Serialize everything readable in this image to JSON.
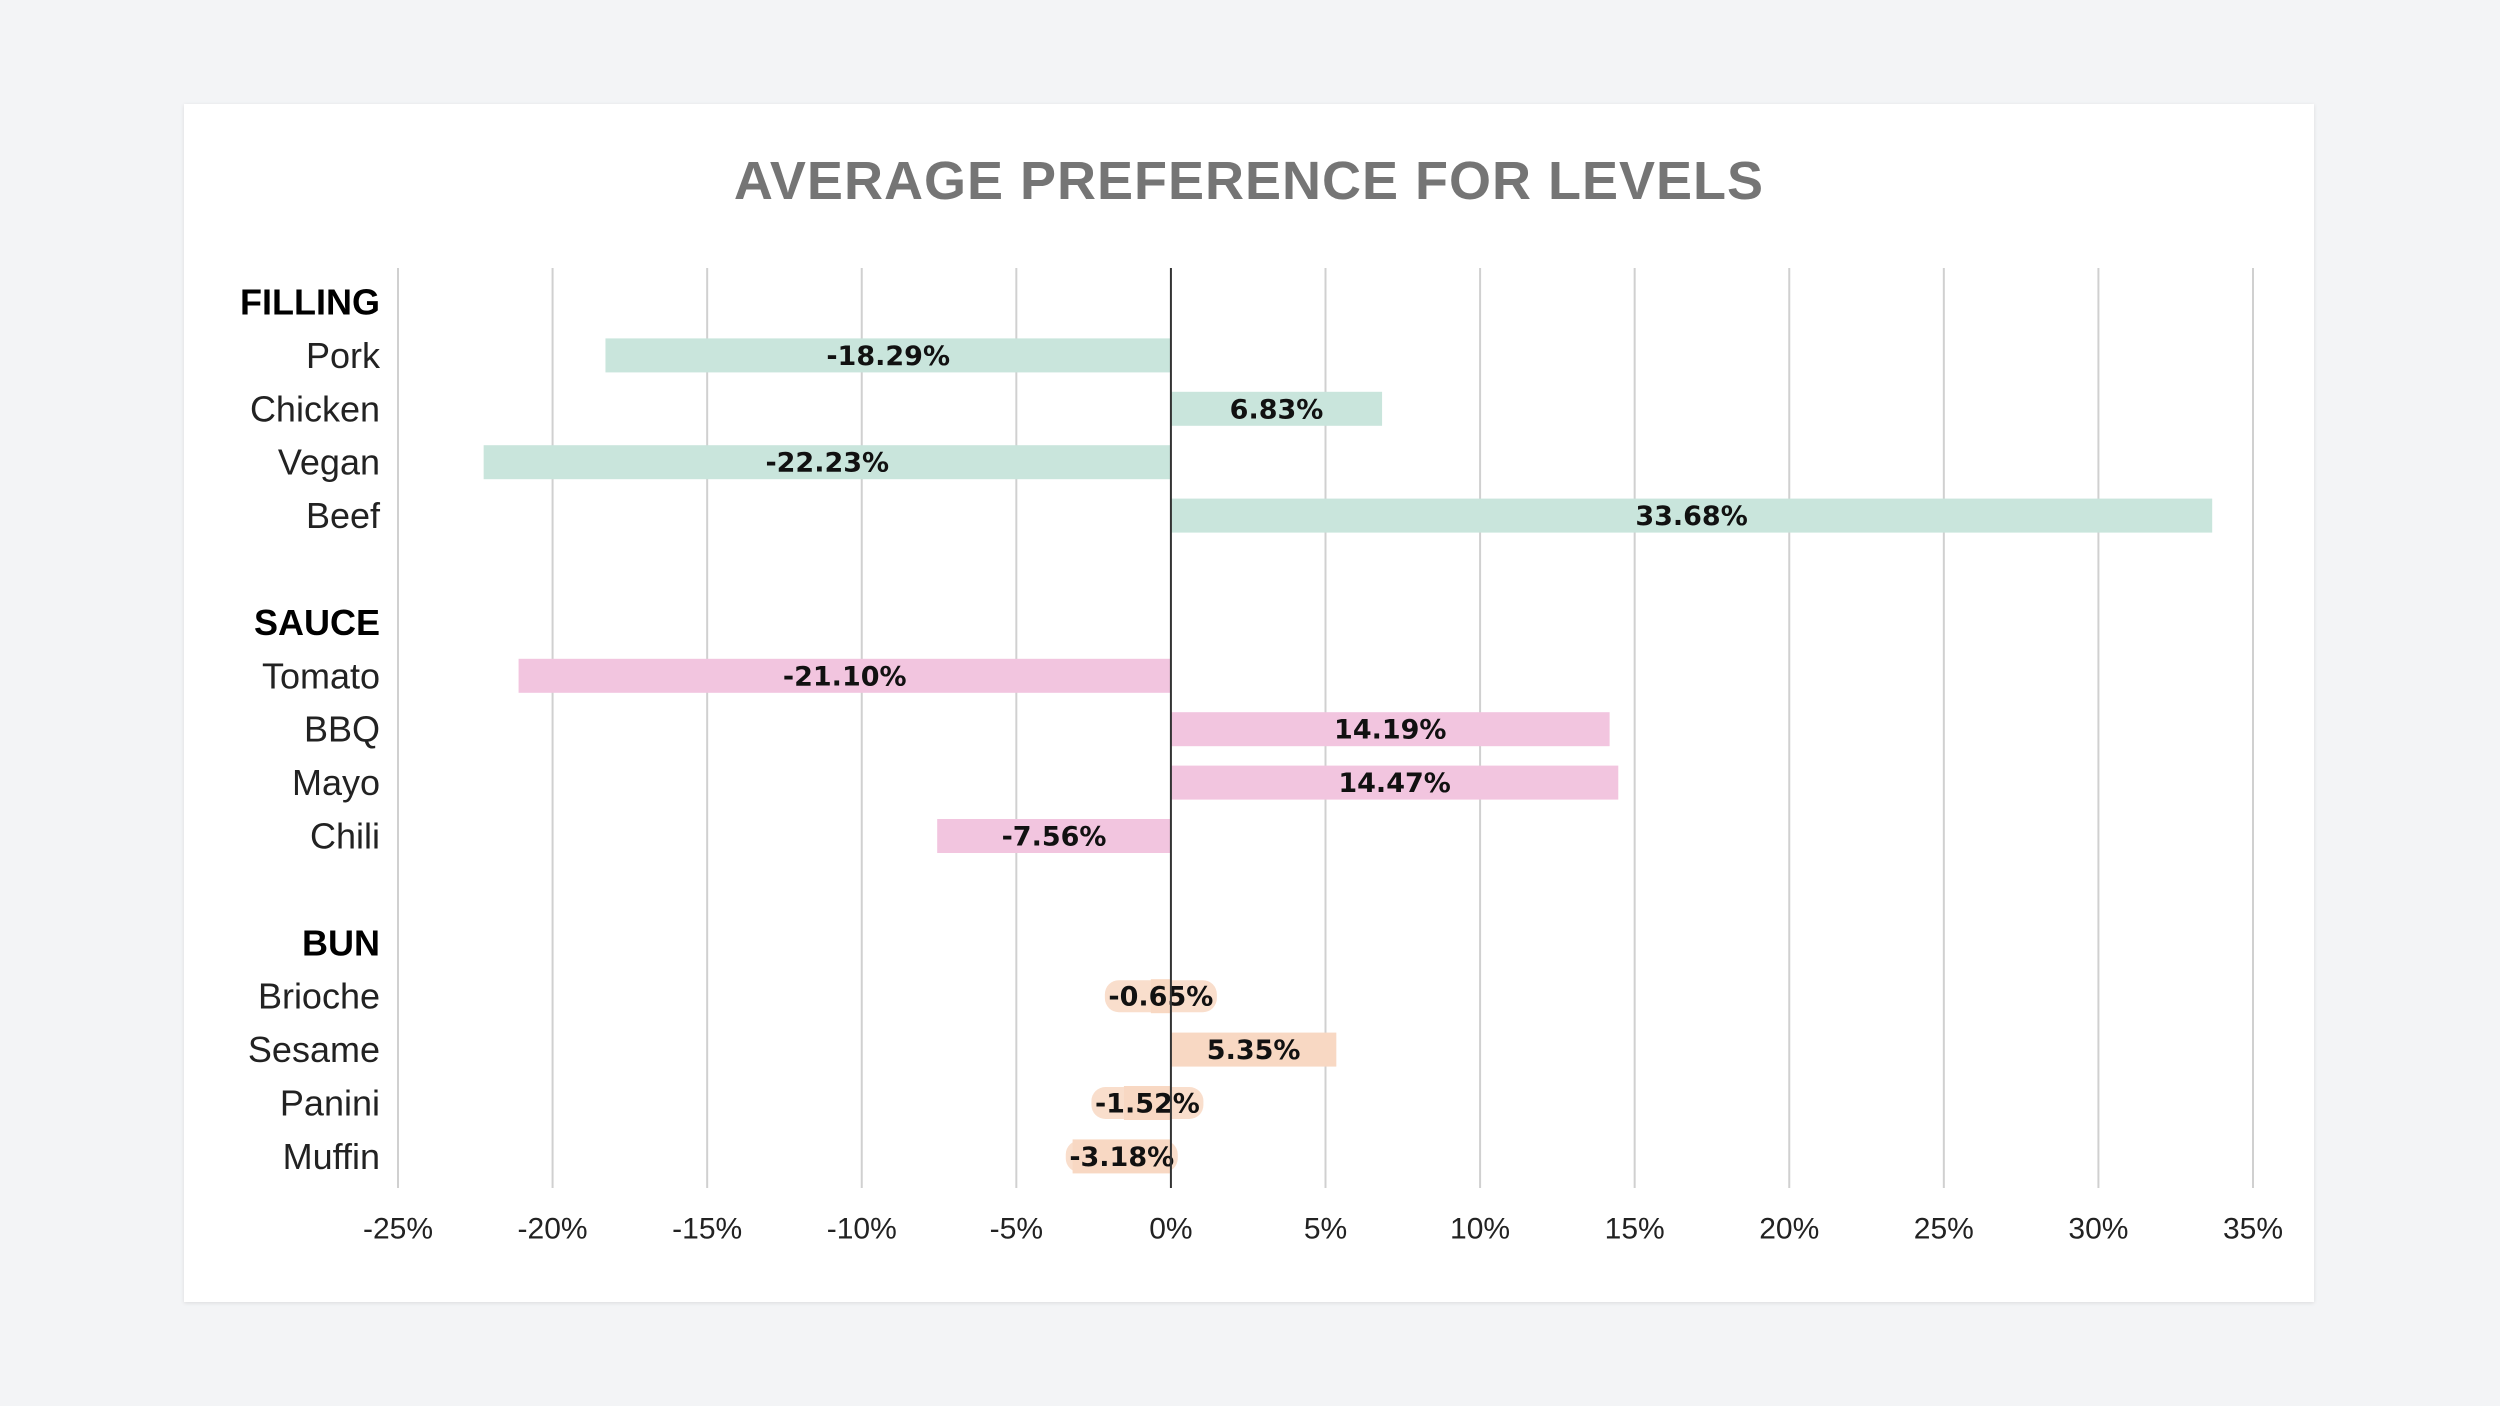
{
  "chart_data": {
    "type": "bar",
    "orientation": "horizontal",
    "title": "AVERAGE PREFERENCE FOR LEVELS",
    "xlabel": "",
    "ylabel": "",
    "xlim": [
      -25,
      35
    ],
    "x_ticks": [
      -25,
      -20,
      -15,
      -10,
      -5,
      0,
      5,
      10,
      15,
      20,
      25,
      30,
      35
    ],
    "x_tick_labels": [
      "-25%",
      "-20%",
      "-15%",
      "-10%",
      "-5%",
      "0%",
      "5%",
      "10%",
      "15%",
      "20%",
      "25%",
      "30%",
      "35%"
    ],
    "grid": "vertical",
    "legend": "none",
    "groups": [
      {
        "name": "FILLING",
        "color": "#c9e5dc",
        "items": [
          {
            "label": "Pork",
            "value": -18.29,
            "value_label": "-18.29%"
          },
          {
            "label": "Chicken",
            "value": 6.83,
            "value_label": "6.83%"
          },
          {
            "label": "Vegan",
            "value": -22.23,
            "value_label": "-22.23%"
          },
          {
            "label": "Beef",
            "value": 33.68,
            "value_label": "33.68%"
          }
        ]
      },
      {
        "name": "SAUCE",
        "color": "#f2c5df",
        "items": [
          {
            "label": "Tomato",
            "value": -21.1,
            "value_label": "-21.10%"
          },
          {
            "label": "BBQ",
            "value": 14.19,
            "value_label": "14.19%"
          },
          {
            "label": "Mayo",
            "value": 14.47,
            "value_label": "14.47%"
          },
          {
            "label": "Chili",
            "value": -7.56,
            "value_label": "-7.56%"
          }
        ]
      },
      {
        "name": "BUN",
        "color": "#f8d8c3",
        "items": [
          {
            "label": "Brioche",
            "value": -0.65,
            "value_label": "-0.65%"
          },
          {
            "label": "Sesame",
            "value": 5.35,
            "value_label": "5.35%"
          },
          {
            "label": "Panini",
            "value": -1.52,
            "value_label": "-1.52%"
          },
          {
            "label": "Muffin",
            "value": -3.18,
            "value_label": "-3.18%"
          }
        ]
      }
    ]
  }
}
